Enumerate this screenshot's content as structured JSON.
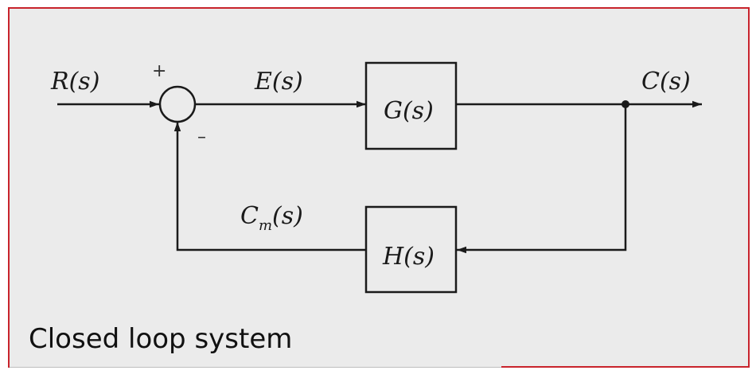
{
  "diagram": {
    "input_label": "R(s)",
    "error_label": "E(s)",
    "output_label": "C(s)",
    "forward_block": "G(s)",
    "feedback_block": "H(s)",
    "feedback_signal": {
      "main": "C",
      "subscript": "m",
      "arg": "(s)"
    },
    "plus_sign": "+",
    "minus_sign": "–"
  },
  "caption": "Closed loop system",
  "colors": {
    "frame_border": "#c8232c",
    "background": "#ebebeb",
    "line": "#1a1a1a"
  }
}
